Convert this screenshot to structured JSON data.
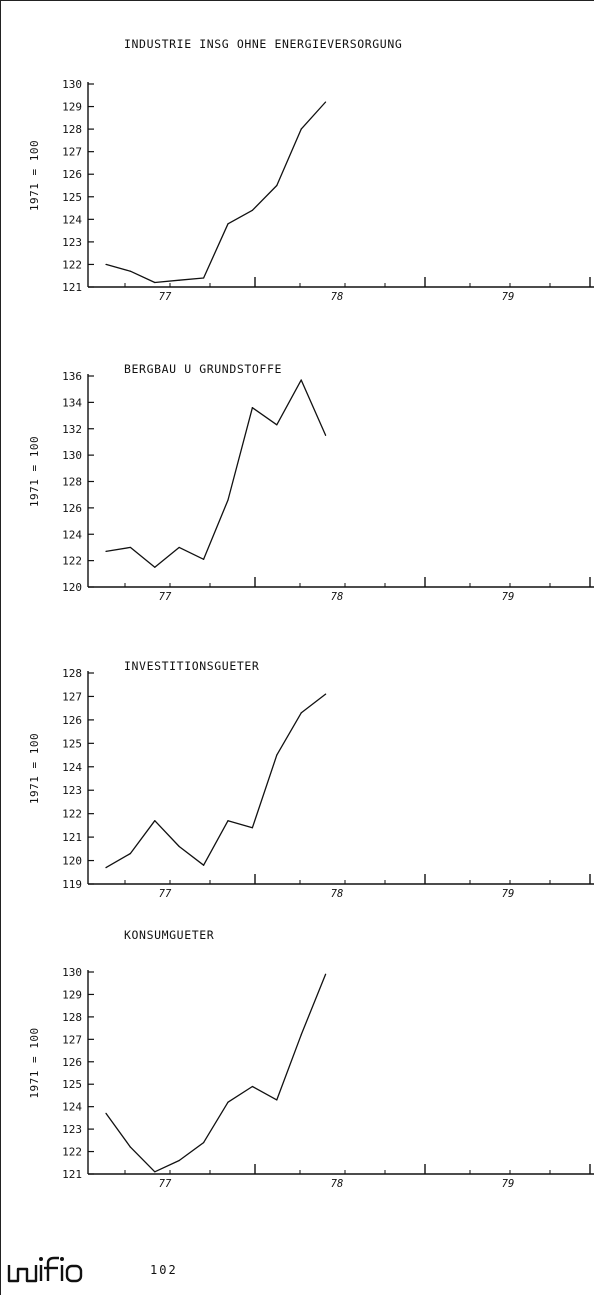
{
  "chart_data": [
    {
      "type": "line",
      "title": "INDUSTRIE INSG  OHNE ENERGIEVERSORGUNG",
      "ylabel": "1971 = 100",
      "xlabel": "",
      "x_ticks": [
        "77",
        "78",
        "79"
      ],
      "yticks": [
        121,
        122,
        123,
        124,
        125,
        126,
        127,
        128,
        129,
        130
      ],
      "ylim": [
        121,
        130
      ],
      "grid": false,
      "series": [
        {
          "values": [
            122.0,
            121.7,
            121.2,
            121.3,
            121.4,
            123.8,
            124.4,
            125.5,
            128.0,
            129.2
          ]
        }
      ]
    },
    {
      "type": "line",
      "title": "BERGBAU U  GRUNDSTOFFE",
      "ylabel": "1971 = 100",
      "xlabel": "",
      "x_ticks": [
        "77",
        "78",
        "79"
      ],
      "yticks": [
        120,
        122,
        124,
        126,
        128,
        130,
        132,
        134,
        136
      ],
      "ylim": [
        120,
        136
      ],
      "grid": false,
      "series": [
        {
          "values": [
            122.7,
            123.0,
            121.5,
            123.0,
            122.1,
            126.6,
            133.6,
            132.3,
            135.7,
            131.5
          ]
        }
      ]
    },
    {
      "type": "line",
      "title": "INVESTITIONSGUETER",
      "ylabel": "1971 = 100",
      "xlabel": "",
      "x_ticks": [
        "77",
        "78",
        "79"
      ],
      "yticks": [
        119,
        120,
        121,
        122,
        123,
        124,
        125,
        126,
        127,
        128
      ],
      "ylim": [
        119,
        128
      ],
      "grid": false,
      "series": [
        {
          "values": [
            119.7,
            120.3,
            121.7,
            120.6,
            119.8,
            121.7,
            121.4,
            124.5,
            126.3,
            127.1
          ]
        }
      ]
    },
    {
      "type": "line",
      "title": "KONSUMGUETER",
      "ylabel": "1971 = 100",
      "xlabel": "",
      "x_ticks": [
        "77",
        "78",
        "79"
      ],
      "yticks": [
        121,
        122,
        123,
        124,
        125,
        126,
        127,
        128,
        129,
        130
      ],
      "ylim": [
        121,
        130
      ],
      "grid": false,
      "series": [
        {
          "values": [
            123.7,
            122.2,
            121.1,
            121.6,
            122.4,
            124.2,
            124.9,
            124.3,
            127.2,
            129.9
          ]
        }
      ]
    }
  ],
  "footer": {
    "logo": "wifo",
    "page_number": "102"
  }
}
